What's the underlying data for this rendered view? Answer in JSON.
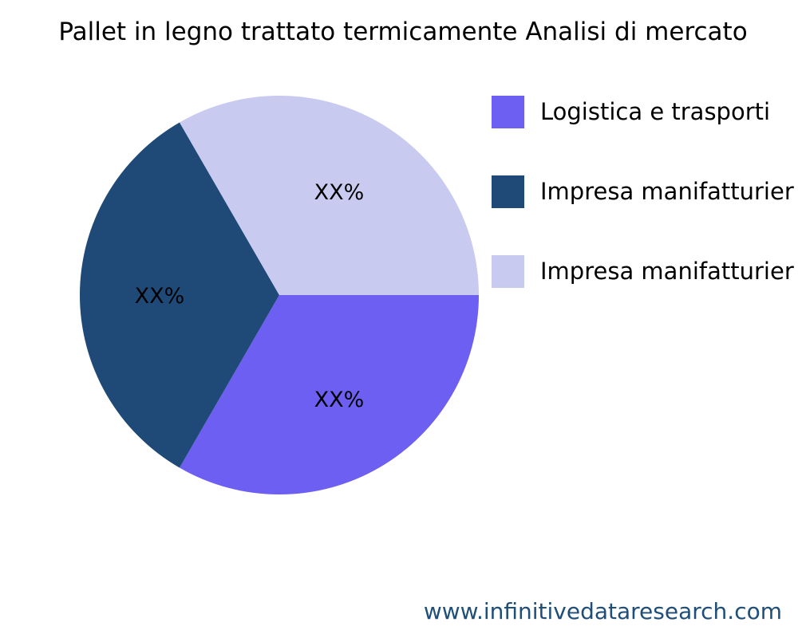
{
  "chart_data": {
    "type": "pie",
    "title": "Pallet in legno trattato termicamente Analisi di mercato",
    "slices": [
      {
        "name": "Logistica e trasporti",
        "value": 33.33,
        "label": "XX%",
        "color": "#6c5ff1"
      },
      {
        "name": "Impresa manifatturier",
        "value": 33.33,
        "label": "XX%",
        "color": "#1f4a78"
      },
      {
        "name": "Impresa manifatturier",
        "value": 33.33,
        "label": "XX%",
        "color": "#c9caf0"
      }
    ],
    "start_angle_deg": 0,
    "direction": "clockwise",
    "legend_position": "right"
  },
  "footer": {
    "url": "www.infinitivedataresearch.com"
  }
}
